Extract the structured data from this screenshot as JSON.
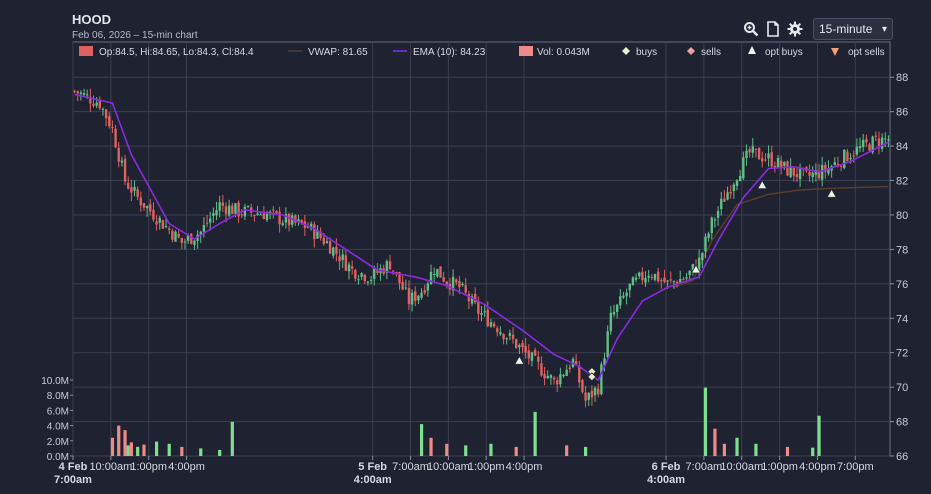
{
  "header": {
    "title": "HOOD",
    "subtitle": "Feb 06, 2026 – 15-min chart",
    "interval": "15-minute",
    "icons": [
      "zoom-icon",
      "document-icon",
      "gear-icon"
    ]
  },
  "colors": {
    "background": "#1f2230",
    "grid": "#3a3f50",
    "up": "#5fbf85",
    "down": "#e0615f",
    "vwap": "#5a4028",
    "ema": "#8a2be2",
    "vol_up": "#7ee08e",
    "vol_down": "#f08a88"
  },
  "chart_data": {
    "type": "candlestick",
    "legend": {
      "ohlc": "Op:84.5, Hi:84.65, Lo:84.3, Cl:84.4",
      "vwap": "VWAP: 81.65",
      "ema": "EMA (10): 84.23",
      "vol": "Vol: 0.043M",
      "buys": "buys",
      "sells": "sells",
      "opt_buys": "opt buys",
      "opt_sells": "opt sells"
    },
    "price_axis": {
      "min": 66,
      "max": 89,
      "ticks": [
        66,
        68,
        70,
        72,
        74,
        76,
        78,
        80,
        82,
        84,
        86,
        88
      ]
    },
    "volume_axis": {
      "max": 10,
      "ticks": [
        "0.0M",
        "2.0M",
        "4.0M",
        "6.0M",
        "8.0M",
        "10.0M"
      ]
    },
    "x_ticks": [
      {
        "label": "4 Feb",
        "sub": "7:00am",
        "bold": true
      },
      {
        "label": "10:00am"
      },
      {
        "label": "1:00pm"
      },
      {
        "label": "4:00pm"
      },
      {
        "label": "5 Feb",
        "sub": "4:00am",
        "bold": true
      },
      {
        "label": "7:00am"
      },
      {
        "label": "10:00am"
      },
      {
        "label": "1:00pm"
      },
      {
        "label": "4:00pm"
      },
      {
        "label": "6 Feb",
        "sub": "4:00am",
        "bold": true
      },
      {
        "label": "7:00am"
      },
      {
        "label": "10:00am"
      },
      {
        "label": "1:00pm"
      },
      {
        "label": "4:00pm"
      },
      {
        "label": "7:00pm"
      }
    ],
    "close_anchors": [
      [
        0,
        87.2
      ],
      [
        8,
        86.5
      ],
      [
        12,
        85.0
      ],
      [
        16,
        82.0
      ],
      [
        20,
        81.0
      ],
      [
        28,
        79.5
      ],
      [
        34,
        78.4
      ],
      [
        40,
        79.0
      ],
      [
        46,
        80.6
      ],
      [
        52,
        80.2
      ],
      [
        60,
        80.1
      ],
      [
        68,
        79.6
      ],
      [
        74,
        79.3
      ],
      [
        80,
        78.4
      ],
      [
        88,
        76.8
      ],
      [
        94,
        76.4
      ],
      [
        100,
        77.2
      ],
      [
        106,
        75.0
      ],
      [
        110,
        75.6
      ],
      [
        114,
        76.9
      ],
      [
        118,
        76.2
      ],
      [
        122,
        75.8
      ],
      [
        128,
        74.4
      ],
      [
        134,
        73.5
      ],
      [
        140,
        72.5
      ],
      [
        146,
        71.4
      ],
      [
        152,
        70.3
      ],
      [
        158,
        71.5
      ],
      [
        162,
        69.2
      ],
      [
        166,
        70.0
      ],
      [
        170,
        74.0
      ],
      [
        176,
        75.8
      ],
      [
        182,
        76.7
      ],
      [
        188,
        76.0
      ],
      [
        194,
        76.4
      ],
      [
        198,
        77.3
      ],
      [
        202,
        79.5
      ],
      [
        206,
        81.0
      ],
      [
        210,
        82.4
      ],
      [
        214,
        83.6
      ],
      [
        220,
        83.3
      ],
      [
        226,
        82.6
      ],
      [
        232,
        82.2
      ],
      [
        238,
        82.6
      ],
      [
        246,
        83.6
      ],
      [
        254,
        84.3
      ],
      [
        258,
        84.4
      ]
    ],
    "vwap_points": [
      [
        190,
        75.8
      ],
      [
        196,
        76.2
      ],
      [
        202,
        78.5
      ],
      [
        210,
        80.6
      ],
      [
        220,
        81.2
      ],
      [
        230,
        81.45
      ],
      [
        240,
        81.55
      ],
      [
        258,
        81.65
      ]
    ],
    "ema_anchors": [
      [
        0,
        87.0
      ],
      [
        12,
        86.5
      ],
      [
        18,
        83.5
      ],
      [
        24,
        81.5
      ],
      [
        30,
        79.5
      ],
      [
        38,
        78.6
      ],
      [
        46,
        79.5
      ],
      [
        54,
        80.3
      ],
      [
        66,
        80.0
      ],
      [
        76,
        79.2
      ],
      [
        86,
        78.0
      ],
      [
        96,
        76.8
      ],
      [
        108,
        76.4
      ],
      [
        118,
        75.9
      ],
      [
        130,
        74.8
      ],
      [
        142,
        73.3
      ],
      [
        152,
        71.9
      ],
      [
        160,
        71.2
      ],
      [
        166,
        70.4
      ],
      [
        172,
        72.8
      ],
      [
        180,
        75.0
      ],
      [
        188,
        75.8
      ],
      [
        198,
        76.4
      ],
      [
        204,
        78.5
      ],
      [
        212,
        81.0
      ],
      [
        220,
        82.7
      ],
      [
        228,
        82.8
      ],
      [
        236,
        82.5
      ],
      [
        246,
        83.1
      ],
      [
        258,
        84.23
      ]
    ],
    "volume_bars": [
      [
        12,
        2.4,
        "down"
      ],
      [
        14,
        4.0,
        "down"
      ],
      [
        16,
        3.4,
        "down"
      ],
      [
        17,
        1.4,
        "up"
      ],
      [
        18,
        1.8,
        "down"
      ],
      [
        20,
        1.2,
        "up"
      ],
      [
        22,
        1.5,
        "down"
      ],
      [
        26,
        1.9,
        "up"
      ],
      [
        30,
        1.6,
        "up"
      ],
      [
        34,
        1.2,
        "down"
      ],
      [
        40,
        1.0,
        "up"
      ],
      [
        46,
        0.8,
        "up"
      ],
      [
        50,
        4.5,
        "up"
      ],
      [
        110,
        4.2,
        "up"
      ],
      [
        113,
        2.4,
        "down"
      ],
      [
        118,
        1.6,
        "down"
      ],
      [
        124,
        1.4,
        "up"
      ],
      [
        132,
        1.6,
        "up"
      ],
      [
        140,
        1.2,
        "down"
      ],
      [
        146,
        5.8,
        "up"
      ],
      [
        156,
        1.4,
        "down"
      ],
      [
        162,
        1.2,
        "up"
      ],
      [
        200,
        9.0,
        "up"
      ],
      [
        203,
        3.6,
        "down"
      ],
      [
        206,
        1.6,
        "down"
      ],
      [
        210,
        2.4,
        "up"
      ],
      [
        216,
        1.6,
        "up"
      ],
      [
        226,
        1.2,
        "down"
      ],
      [
        234,
        1.1,
        "up"
      ],
      [
        236,
        5.3,
        "up"
      ]
    ],
    "opt_buy_markers": [
      [
        141,
        71.5
      ],
      [
        197,
        76.8
      ],
      [
        218,
        81.7
      ],
      [
        240,
        81.2
      ]
    ],
    "buy_markers": [
      [
        164,
        70.9
      ],
      [
        164,
        70.6
      ]
    ],
    "n_bars": 259
  }
}
